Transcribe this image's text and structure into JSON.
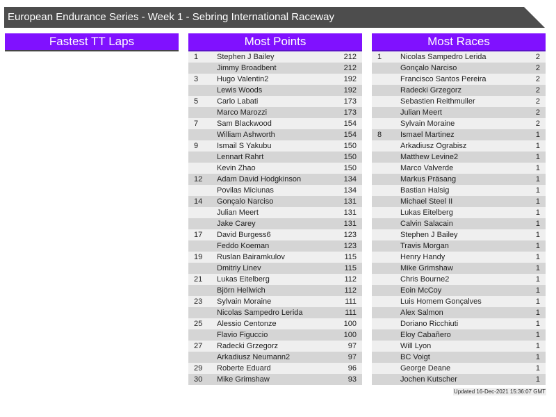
{
  "title": "European Endurance Series - Week 1 - Sebring International Raceway",
  "colors": {
    "title_bg": "#4d4d4d",
    "header_bg": "#8011ff",
    "row_light": "#efefef",
    "row_dark": "#d5d5d5"
  },
  "fastest_tt": {
    "title": "Fastest TT Laps",
    "rows": []
  },
  "most_points": {
    "title": "Most Points",
    "rows": [
      [
        "1",
        "Stephen J Bailey",
        "212"
      ],
      [
        "",
        "Jimmy Broadbent",
        "212"
      ],
      [
        "3",
        "Hugo Valentin2",
        "192"
      ],
      [
        "",
        "Lewis Woods",
        "192"
      ],
      [
        "5",
        "Carlo Labati",
        "173"
      ],
      [
        "",
        "Marco Marozzi",
        "173"
      ],
      [
        "7",
        "Sam Blackwood",
        "154"
      ],
      [
        "",
        "William Ashworth",
        "154"
      ],
      [
        "9",
        "Ismail S Yakubu",
        "150"
      ],
      [
        "",
        "Lennart Rahrt",
        "150"
      ],
      [
        "",
        "Kevin Zhao",
        "150"
      ],
      [
        "12",
        "Adam David Hodgkinson",
        "134"
      ],
      [
        "",
        "Povilas Miciunas",
        "134"
      ],
      [
        "14",
        "Gonçalo Narciso",
        "131"
      ],
      [
        "",
        "Julian Meert",
        "131"
      ],
      [
        "",
        "Jake Carey",
        "131"
      ],
      [
        "17",
        "David Burgess6",
        "123"
      ],
      [
        "",
        "Feddo Koeman",
        "123"
      ],
      [
        "19",
        "Ruslan Bairamkulov",
        "115"
      ],
      [
        "",
        "Dmitriy Linev",
        "115"
      ],
      [
        "21",
        "Lukas Eitelberg",
        "112"
      ],
      [
        "",
        "Björn Hellwich",
        "112"
      ],
      [
        "23",
        "Sylvain Moraine",
        "111"
      ],
      [
        "",
        "Nicolas Sampedro Lerida",
        "111"
      ],
      [
        "25",
        "Alessio Centonze",
        "100"
      ],
      [
        "",
        "Flavio Figuccio",
        "100"
      ],
      [
        "27",
        "Radecki Grzegorz",
        "97"
      ],
      [
        "",
        "Arkadiusz Neumann2",
        "97"
      ],
      [
        "29",
        "Roberte Eduard",
        "96"
      ],
      [
        "30",
        "Mike Grimshaw",
        "93"
      ]
    ]
  },
  "most_races": {
    "title": "Most Races",
    "rows": [
      [
        "1",
        "Nicolas Sampedro Lerida",
        "2"
      ],
      [
        "",
        "Gonçalo Narciso",
        "2"
      ],
      [
        "",
        "Francisco Santos Pereira",
        "2"
      ],
      [
        "",
        "Radecki Grzegorz",
        "2"
      ],
      [
        "",
        "Sebastien Reithmuller",
        "2"
      ],
      [
        "",
        "Julian Meert",
        "2"
      ],
      [
        "",
        "Sylvain Moraine",
        "2"
      ],
      [
        "8",
        "Ismael Martinez",
        "1"
      ],
      [
        "",
        "Arkadiusz Ograbisz",
        "1"
      ],
      [
        "",
        "Matthew Levine2",
        "1"
      ],
      [
        "",
        "Marco Valverde",
        "1"
      ],
      [
        "",
        "Markus Präsang",
        "1"
      ],
      [
        "",
        "Bastian Halsig",
        "1"
      ],
      [
        "",
        "Michael Steel II",
        "1"
      ],
      [
        "",
        "Lukas Eitelberg",
        "1"
      ],
      [
        "",
        "Calvin Salacain",
        "1"
      ],
      [
        "",
        "Stephen J Bailey",
        "1"
      ],
      [
        "",
        "Travis Morgan",
        "1"
      ],
      [
        "",
        "Henry Handy",
        "1"
      ],
      [
        "",
        "Mike Grimshaw",
        "1"
      ],
      [
        "",
        "Chris Bourne2",
        "1"
      ],
      [
        "",
        "Eoin McCoy",
        "1"
      ],
      [
        "",
        "Luis Homem Gonçalves",
        "1"
      ],
      [
        "",
        "Alex Salmon",
        "1"
      ],
      [
        "",
        "Doriano Ricchiuti",
        "1"
      ],
      [
        "",
        "Eloy Cabañero",
        "1"
      ],
      [
        "",
        "Will Lyon",
        "1"
      ],
      [
        "",
        "BC Voigt",
        "1"
      ],
      [
        "",
        "George Deane",
        "1"
      ],
      [
        "",
        "Jochen Kutscher",
        "1"
      ]
    ]
  },
  "updated": "Updated 16-Dec-2021 15:36:07 GMT"
}
